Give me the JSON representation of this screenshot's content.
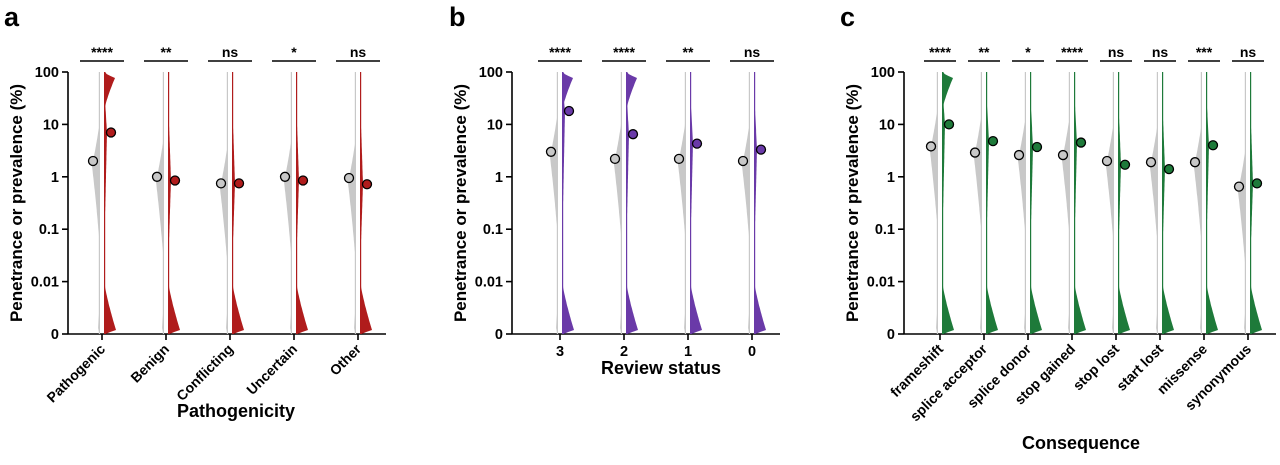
{
  "chart_data": [
    {
      "panel": "a",
      "type": "violin",
      "ylabel": "Penetrance or prevalence (%)",
      "xlabel": "Pathogenicity",
      "yscale": "log",
      "yticks": [
        "0",
        "0.01",
        "0.1",
        "1",
        "10",
        "100"
      ],
      "ylim": [
        0,
        100
      ],
      "categories": [
        "Pathogenic",
        "Benign",
        "Conflicting",
        "Uncertain",
        "Other"
      ],
      "significance": [
        "****",
        "**",
        "ns",
        "*",
        "ns"
      ],
      "series": [
        {
          "role": "prevalence",
          "color": "#c8c8c8",
          "medians": [
            2.0,
            1.0,
            0.75,
            1.0,
            0.95
          ]
        },
        {
          "role": "penetrance",
          "color": "#b01c1c",
          "medians": [
            7.0,
            0.85,
            0.75,
            0.85,
            0.72
          ]
        }
      ]
    },
    {
      "panel": "b",
      "type": "violin",
      "ylabel": "Penetrance or prevalence (%)",
      "xlabel": "Review status",
      "yscale": "log",
      "yticks": [
        "0",
        "0.01",
        "0.1",
        "1",
        "10",
        "100"
      ],
      "ylim": [
        0,
        100
      ],
      "categories": [
        "3",
        "2",
        "1",
        "0"
      ],
      "significance": [
        "****",
        "****",
        "**",
        "ns"
      ],
      "series": [
        {
          "role": "prevalence",
          "color": "#c8c8c8",
          "medians": [
            3.0,
            2.2,
            2.2,
            2.0
          ]
        },
        {
          "role": "penetrance",
          "color": "#6a3aa8",
          "medians": [
            18.0,
            6.5,
            4.3,
            3.3
          ]
        }
      ]
    },
    {
      "panel": "c",
      "type": "violin",
      "ylabel": "Penetrance or prevalence (%)",
      "xlabel": "Consequence",
      "yscale": "log",
      "yticks": [
        "0",
        "0.01",
        "0.1",
        "1",
        "10",
        "100"
      ],
      "ylim": [
        0,
        100
      ],
      "categories": [
        "frameshift",
        "splice acceptor",
        "splice donor",
        "stop gained",
        "stop lost",
        "start lost",
        "missense",
        "synonymous"
      ],
      "significance": [
        "****",
        "**",
        "*",
        "****",
        "ns",
        "ns",
        "***",
        "ns"
      ],
      "series": [
        {
          "role": "prevalence",
          "color": "#c8c8c8",
          "medians": [
            3.8,
            2.9,
            2.6,
            2.6,
            2.0,
            1.9,
            1.9,
            0.65
          ]
        },
        {
          "role": "penetrance",
          "color": "#1e7a3a",
          "medians": [
            10.0,
            4.8,
            3.7,
            4.5,
            1.7,
            1.4,
            4.0,
            0.75
          ]
        }
      ]
    }
  ]
}
